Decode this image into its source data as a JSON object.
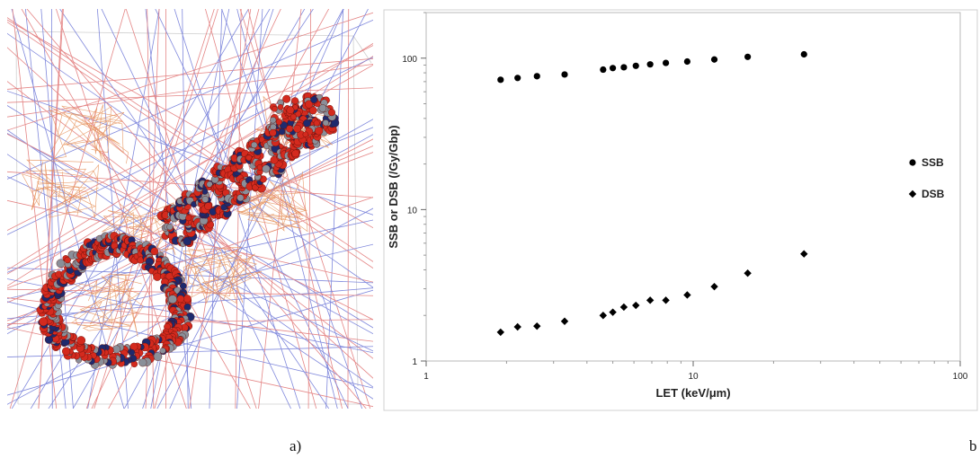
{
  "panel_a": {
    "caption": "a)",
    "image_icon": "dna-molecule-with-particle-tracks-icon",
    "colors": {
      "atom_red": "#d42a1e",
      "atom_grey": "#8a8f99",
      "atom_navy": "#1e2a6e",
      "track_red": "#e07070",
      "track_blue": "#6a74d6",
      "orange_tracks": "#e6915a"
    }
  },
  "panel_b": {
    "caption": "b"
  },
  "chart_data": {
    "type": "scatter",
    "title": "",
    "xlabel": "LET (keV/μm)",
    "ylabel": "SSB or DSB (/Gy/Gbp)",
    "xscale": "log",
    "yscale": "log",
    "xlim": [
      1,
      100
    ],
    "ylim": [
      1,
      200
    ],
    "xticks": [
      1,
      10,
      100
    ],
    "xtick_labels": [
      "1",
      "10",
      "100"
    ],
    "yticks": [
      1,
      10,
      100
    ],
    "ytick_labels": [
      "1",
      "10",
      "100"
    ],
    "grid": false,
    "legend": "right",
    "series": [
      {
        "name": "SSB",
        "marker": "circle",
        "color": "#000000",
        "x": [
          1.9,
          2.2,
          2.6,
          3.3,
          4.6,
          5.0,
          5.5,
          6.1,
          6.9,
          7.9,
          9.5,
          12.0,
          16.0,
          26.0
        ],
        "y": [
          72,
          74,
          76,
          78,
          84,
          86,
          87,
          89,
          91,
          93,
          95,
          98,
          102,
          106
        ]
      },
      {
        "name": "DSB",
        "marker": "diamond",
        "color": "#000000",
        "x": [
          1.9,
          2.2,
          2.6,
          3.3,
          4.6,
          5.0,
          5.5,
          6.1,
          6.9,
          7.9,
          9.5,
          12.0,
          16.0,
          26.0
        ],
        "y": [
          1.55,
          1.68,
          1.7,
          1.83,
          2.0,
          2.1,
          2.27,
          2.33,
          2.52,
          2.52,
          2.73,
          3.1,
          3.8,
          5.1
        ]
      }
    ]
  }
}
